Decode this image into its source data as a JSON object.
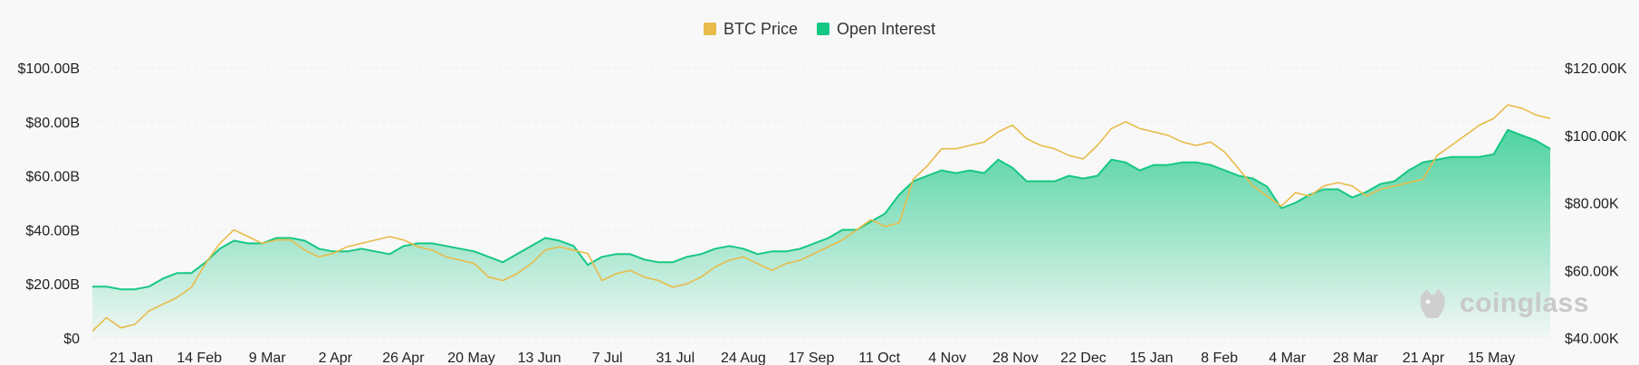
{
  "chart_data": {
    "type": "line",
    "legend_position": "top",
    "grid": true,
    "colors": {
      "btc_price": "#E8BB4A",
      "open_interest": "#16C784",
      "background": "#F8F8F8"
    },
    "series": [
      {
        "name": "BTC Price",
        "axis": "right",
        "values": [
          42000,
          46000,
          43000,
          44000,
          48000,
          50000,
          52000,
          55000,
          62000,
          68000,
          72000,
          70000,
          68000,
          69000,
          69000,
          66000,
          64000,
          65000,
          67000,
          68000,
          69000,
          70000,
          69000,
          67000,
          66000,
          64000,
          63000,
          62000,
          58000,
          57000,
          59000,
          62000,
          66000,
          67000,
          66000,
          65000,
          57000,
          59000,
          60000,
          58000,
          57000,
          55000,
          56000,
          58000,
          61000,
          63000,
          64000,
          62000,
          60000,
          62000,
          63000,
          65000,
          67000,
          69000,
          72000,
          75000,
          73000,
          74000,
          87000,
          91000,
          96000,
          96000,
          97000,
          98000,
          101000,
          103000,
          99000,
          97000,
          96000,
          94000,
          93000,
          97000,
          102000,
          104000,
          102000,
          101000,
          100000,
          98000,
          97000,
          98000,
          95000,
          90000,
          85000,
          82000,
          79000,
          83000,
          82000,
          85000,
          86000,
          85000,
          82000,
          84000,
          85000,
          86000,
          87000,
          94000,
          97000,
          100000,
          103000,
          105000,
          109000,
          108000,
          106000,
          105000
        ]
      },
      {
        "name": "Open Interest",
        "axis": "left",
        "values": [
          19,
          19,
          18,
          18,
          19,
          22,
          24,
          24,
          28,
          33,
          36,
          35,
          35,
          37,
          37,
          36,
          33,
          32,
          32,
          33,
          32,
          31,
          34,
          35,
          35,
          34,
          33,
          32,
          30,
          28,
          31,
          34,
          37,
          36,
          34,
          27,
          30,
          31,
          31,
          29,
          28,
          28,
          30,
          31,
          33,
          34,
          33,
          31,
          32,
          32,
          33,
          35,
          37,
          40,
          40,
          43,
          46,
          53,
          58,
          60,
          62,
          61,
          62,
          61,
          66,
          63,
          58,
          58,
          58,
          60,
          59,
          60,
          66,
          65,
          62,
          64,
          64,
          65,
          65,
          64,
          62,
          60,
          59,
          56,
          48,
          50,
          53,
          55,
          55,
          52,
          54,
          57,
          58,
          62,
          65,
          66,
          67,
          67,
          67,
          68,
          77,
          75,
          73,
          70
        ]
      }
    ],
    "x_labels": [
      "21 Jan",
      "14 Feb",
      "9 Mar",
      "2 Apr",
      "26 Apr",
      "20 May",
      "13 Jun",
      "7 Jul",
      "31 Jul",
      "24 Aug",
      "17 Sep",
      "11 Oct",
      "4 Nov",
      "28 Nov",
      "22 Dec",
      "15 Jan",
      "8 Feb",
      "4 Mar",
      "28 Mar",
      "21 Apr",
      "15 May"
    ],
    "y_left": {
      "ticks": [
        "$0",
        "$20.00B",
        "$40.00B",
        "$60.00B",
        "$80.00B",
        "$100.00B"
      ],
      "range": [
        0,
        100
      ]
    },
    "y_right": {
      "ticks": [
        "$40.00K",
        "$60.00K",
        "$80.00K",
        "$100.00K",
        "$120.00K"
      ],
      "range": [
        40000,
        120000
      ]
    }
  },
  "watermark": {
    "text": "coinglass",
    "icon": "coinglass-logo-icon"
  }
}
